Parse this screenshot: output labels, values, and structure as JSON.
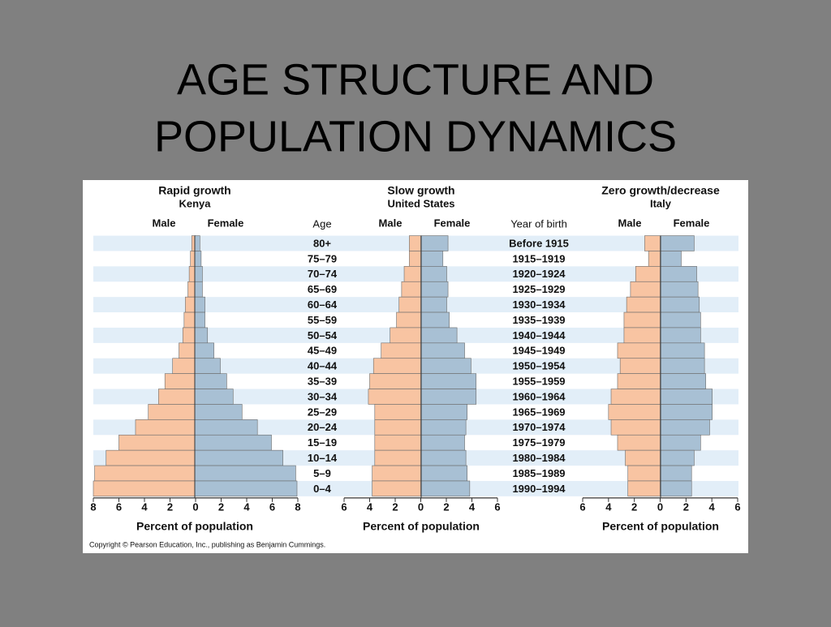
{
  "title_lines": [
    "AGE STRUCTURE AND",
    "POPULATION DYNAMICS"
  ],
  "footnote": "Copyright © Pearson Education, Inc., publishing as Benjamin Cummings.",
  "chart_data": [
    {
      "type": "pyramid",
      "title": "Rapid growth",
      "subtitle": "Kenya",
      "xlabel": "Percent of population",
      "xlim": [
        -8,
        8
      ],
      "xticks": [
        {
          "value": -8,
          "label": "8"
        },
        {
          "value": -6,
          "label": "6"
        },
        {
          "value": -4,
          "label": "4"
        },
        {
          "value": -2,
          "label": "2"
        },
        0,
        2,
        4,
        6,
        8
      ],
      "series": [
        {
          "name": "Male",
          "color": "#f8c4a2",
          "values": [
            0.3,
            0.4,
            0.5,
            0.6,
            0.8,
            0.9,
            1.0,
            1.3,
            1.8,
            2.4,
            2.9,
            3.7,
            4.7,
            6.0,
            7.0,
            7.9,
            8.0
          ]
        },
        {
          "name": "Female",
          "color": "#a8c0d4",
          "values": [
            0.4,
            0.5,
            0.6,
            0.6,
            0.8,
            0.8,
            1.0,
            1.5,
            2.0,
            2.5,
            3.0,
            3.7,
            4.9,
            6.0,
            6.9,
            7.9,
            8.0
          ]
        }
      ]
    },
    {
      "type": "pyramid",
      "title": "Slow growth",
      "subtitle": "United States",
      "xlabel": "Percent of population",
      "category_label": "Age",
      "categories": [
        "80+",
        "75–79",
        "70–74",
        "65–69",
        "60–64",
        "55–59",
        "50–54",
        "45–49",
        "40–44",
        "35–39",
        "30–34",
        "25–29",
        "20–24",
        "15–19",
        "10–14",
        "5–9",
        "0–4"
      ],
      "xlim": [
        -6,
        6
      ],
      "xticks": [
        {
          "value": -6,
          "label": "6"
        },
        {
          "value": -4,
          "label": "4"
        },
        {
          "value": -2,
          "label": "2"
        },
        0,
        2,
        4,
        6
      ],
      "series": [
        {
          "name": "Male",
          "color": "#f8c4a2",
          "values": [
            0.9,
            0.9,
            1.3,
            1.5,
            1.7,
            1.9,
            2.4,
            3.1,
            3.7,
            4.0,
            4.1,
            3.6,
            3.6,
            3.6,
            3.6,
            3.8,
            3.8
          ]
        },
        {
          "name": "Female",
          "color": "#a8c0d4",
          "values": [
            2.1,
            1.7,
            2.0,
            2.1,
            2.0,
            2.2,
            2.8,
            3.4,
            3.9,
            4.3,
            4.3,
            3.6,
            3.5,
            3.4,
            3.5,
            3.6,
            3.8
          ]
        }
      ]
    },
    {
      "type": "pyramid",
      "title": "Zero growth/decrease",
      "subtitle": "Italy",
      "xlabel": "Percent of population",
      "category_label": "Year of birth",
      "categories": [
        "Before 1915",
        "1915–1919",
        "1920–1924",
        "1925–1929",
        "1930–1934",
        "1935–1939",
        "1940–1944",
        "1945–1949",
        "1950–1954",
        "1955–1959",
        "1960–1964",
        "1965–1969",
        "1970–1974",
        "1975–1979",
        "1980–1984",
        "1985–1989",
        "1990–1994"
      ],
      "xlim": [
        -6,
        6
      ],
      "xticks": [
        {
          "value": -6,
          "label": "6"
        },
        {
          "value": -4,
          "label": "4"
        },
        {
          "value": -2,
          "label": "2"
        },
        0,
        2,
        4,
        6
      ],
      "series": [
        {
          "name": "Male",
          "color": "#f8c4a2",
          "values": [
            1.2,
            0.9,
            1.9,
            2.3,
            2.6,
            2.8,
            2.8,
            3.3,
            3.1,
            3.3,
            3.8,
            4.0,
            3.8,
            3.3,
            2.7,
            2.5,
            2.5
          ]
        },
        {
          "name": "Female",
          "color": "#a8c0d4",
          "values": [
            2.6,
            1.6,
            2.8,
            2.9,
            3.0,
            3.1,
            3.1,
            3.4,
            3.4,
            3.5,
            4.0,
            4.0,
            3.8,
            3.1,
            2.6,
            2.4,
            2.4
          ]
        }
      ]
    }
  ]
}
